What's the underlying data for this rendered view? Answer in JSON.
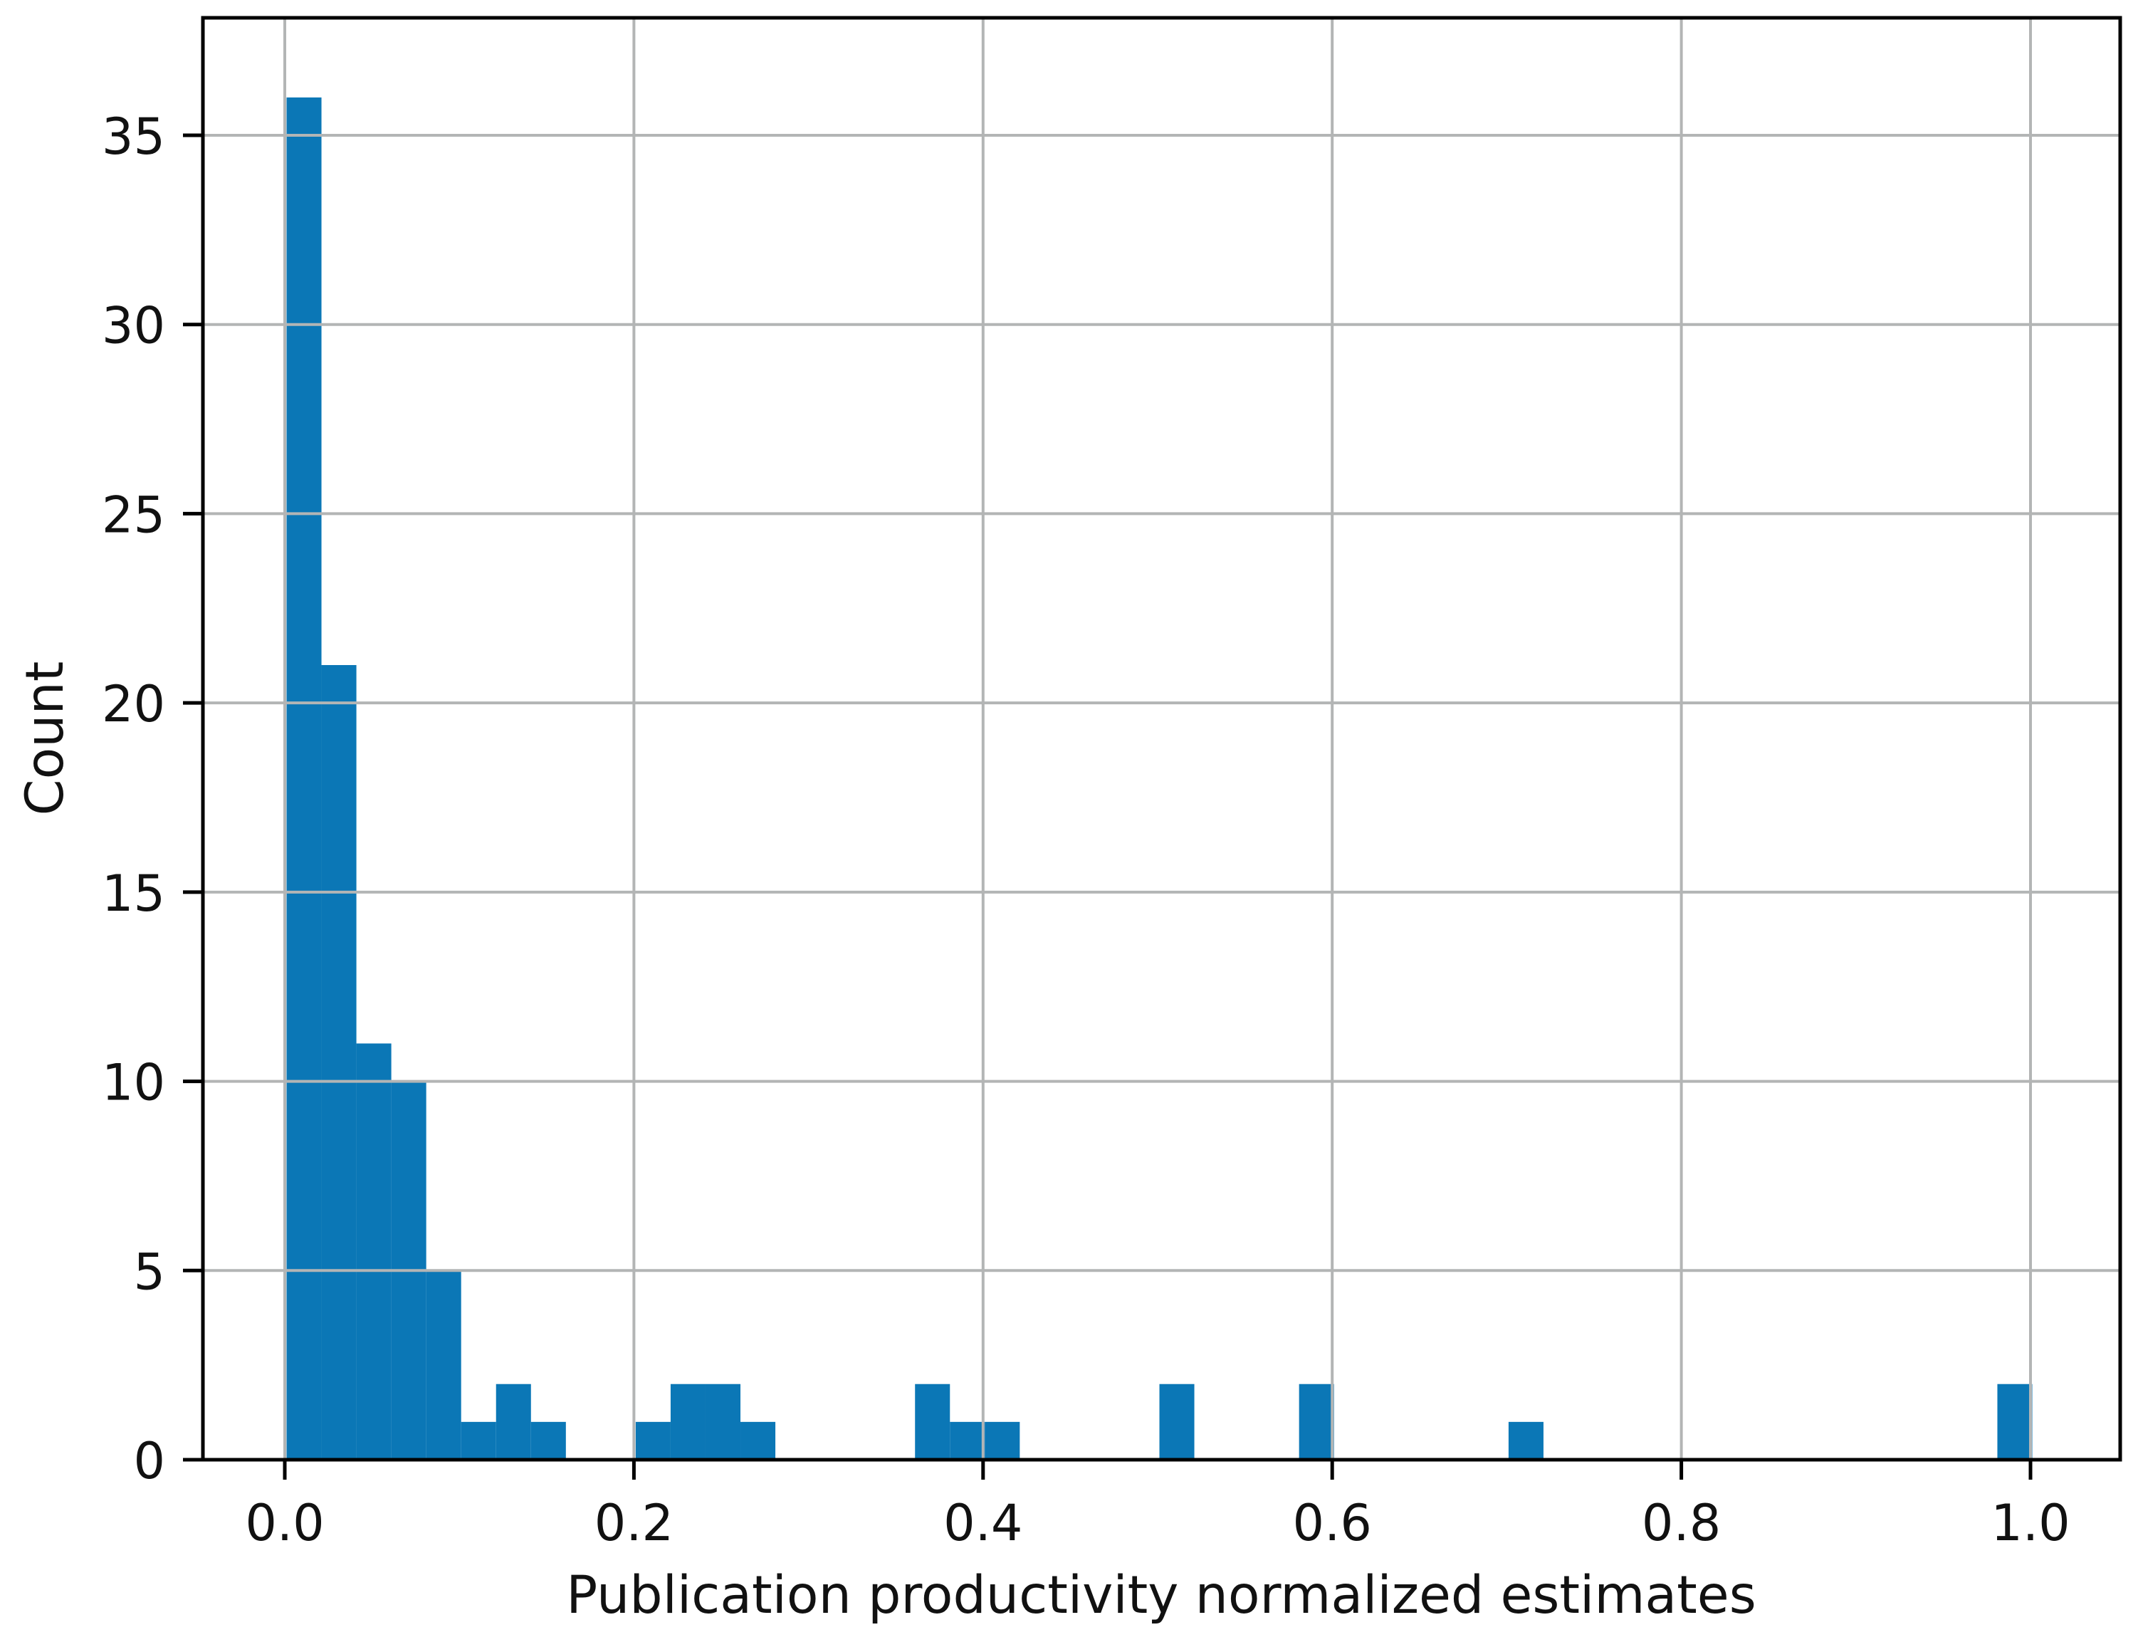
{
  "chart_data": {
    "type": "bar",
    "subtype": "histogram",
    "title": "",
    "xlabel": "Publication productivity normalized estimates",
    "ylabel": "Count",
    "x_tick_values": [
      0.0,
      0.2,
      0.4,
      0.6,
      0.8,
      1.0
    ],
    "x_tick_labels": [
      "0.0",
      "0.2",
      "0.4",
      "0.6",
      "0.8",
      "1.0"
    ],
    "y_tick_values": [
      0,
      5,
      10,
      15,
      20,
      25,
      30,
      35
    ],
    "y_tick_labels": [
      "0",
      "5",
      "10",
      "15",
      "20",
      "25",
      "30",
      "35"
    ],
    "xlim": [
      -0.047,
      1.051
    ],
    "ylim": [
      0,
      38.1
    ],
    "grid": true,
    "legend": false,
    "bin_width": 0.02,
    "bins": [
      {
        "start": 0.0,
        "end": 0.02,
        "count": 36
      },
      {
        "start": 0.02,
        "end": 0.04,
        "count": 21
      },
      {
        "start": 0.04,
        "end": 0.06,
        "count": 11
      },
      {
        "start": 0.06,
        "end": 0.08,
        "count": 10
      },
      {
        "start": 0.08,
        "end": 0.1,
        "count": 5
      },
      {
        "start": 0.1,
        "end": 0.12,
        "count": 1
      },
      {
        "start": 0.12,
        "end": 0.14,
        "count": 2
      },
      {
        "start": 0.14,
        "end": 0.16,
        "count": 1
      },
      {
        "start": 0.2,
        "end": 0.22,
        "count": 1
      },
      {
        "start": 0.22,
        "end": 0.24,
        "count": 2
      },
      {
        "start": 0.24,
        "end": 0.26,
        "count": 2
      },
      {
        "start": 0.26,
        "end": 0.28,
        "count": 1
      },
      {
        "start": 0.36,
        "end": 0.38,
        "count": 2
      },
      {
        "start": 0.38,
        "end": 0.4,
        "count": 1
      },
      {
        "start": 0.4,
        "end": 0.42,
        "count": 1
      },
      {
        "start": 0.5,
        "end": 0.52,
        "count": 2
      },
      {
        "start": 0.58,
        "end": 0.6,
        "count": 2
      },
      {
        "start": 0.7,
        "end": 0.72,
        "count": 1
      },
      {
        "start": 0.98,
        "end": 1.0,
        "count": 2
      }
    ],
    "colors": {
      "bar": "#0b77b6",
      "grid": "#b3b5b5",
      "spine": "#000000",
      "tick": "#000000",
      "text": "#111111",
      "background": "#ffffff"
    }
  }
}
